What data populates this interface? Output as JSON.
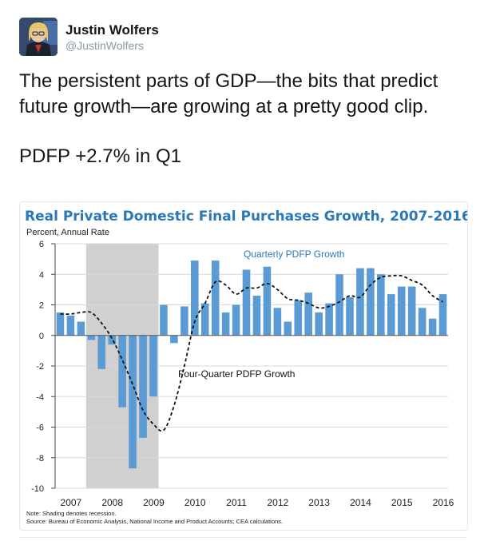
{
  "tweet": {
    "author_name": "Justin Wolfers",
    "author_handle": "@JustinWolfers",
    "text_line1": "The persistent parts of GDP—the bits that predict future growth—are growing at a pretty good clip.",
    "text_line2": "PDFP +2.7% in Q1"
  },
  "colors": {
    "bar": "#5b9bd5",
    "title": "#2a78b8",
    "recession": "#d0d0d0",
    "label_blue": "#2a78b8"
  },
  "chart_data": {
    "type": "bar",
    "title": "Real Private Domestic Final Purchases Growth, 2007-2016",
    "ylabel": "Percent, Annual Rate",
    "ylim": [
      -10,
      6
    ],
    "yticks": [
      6,
      4,
      2,
      0,
      -2,
      -4,
      -6,
      -8,
      -10
    ],
    "xtick_labels": [
      "2007",
      "2008",
      "2009",
      "2010",
      "2011",
      "2012",
      "2013",
      "2014",
      "2015",
      "2016"
    ],
    "start": 2007.0,
    "end": 2016.5,
    "recession": [
      2007.75,
      2009.5
    ],
    "series": [
      {
        "name": "Quarterly PDFP Growth",
        "kind": "bar",
        "values": [
          1.5,
          1.3,
          0.9,
          -0.3,
          -2.2,
          -0.6,
          -4.7,
          -8.7,
          -6.7,
          -4.0,
          2.0,
          -0.5,
          1.9,
          4.9,
          2.1,
          4.9,
          1.5,
          2.0,
          4.3,
          2.6,
          4.5,
          1.8,
          0.9,
          2.3,
          2.8,
          1.5,
          2.1,
          4.0,
          2.5,
          4.4,
          4.4,
          4.0,
          2.7,
          3.2,
          3.2,
          1.8,
          1.1,
          2.7
        ]
      },
      {
        "name": "Four-Quarter PDFP Growth",
        "kind": "line-dashed",
        "values": [
          1.4,
          1.4,
          1.5,
          1.5,
          0.8,
          -0.2,
          -1.6,
          -3.2,
          -4.9,
          -5.8,
          -6.2,
          -4.6,
          -2.0,
          0.9,
          2.1,
          3.5,
          3.3,
          2.7,
          3.1,
          3.1,
          3.4,
          3.0,
          2.4,
          2.3,
          2.1,
          1.8,
          1.9,
          2.2,
          2.6,
          2.5,
          3.3,
          3.8,
          3.9,
          3.9,
          3.6,
          3.3,
          2.6,
          2.2
        ]
      }
    ],
    "annotations": [
      {
        "text": "Quarterly PDFP Growth"
      },
      {
        "text": "Four-Quarter PDFP Growth"
      }
    ],
    "note": "Note: Shading denotes recession.",
    "source": "Source: Bureau of Economic Analysis, National Income and Product Accounts; CEA calculations."
  }
}
